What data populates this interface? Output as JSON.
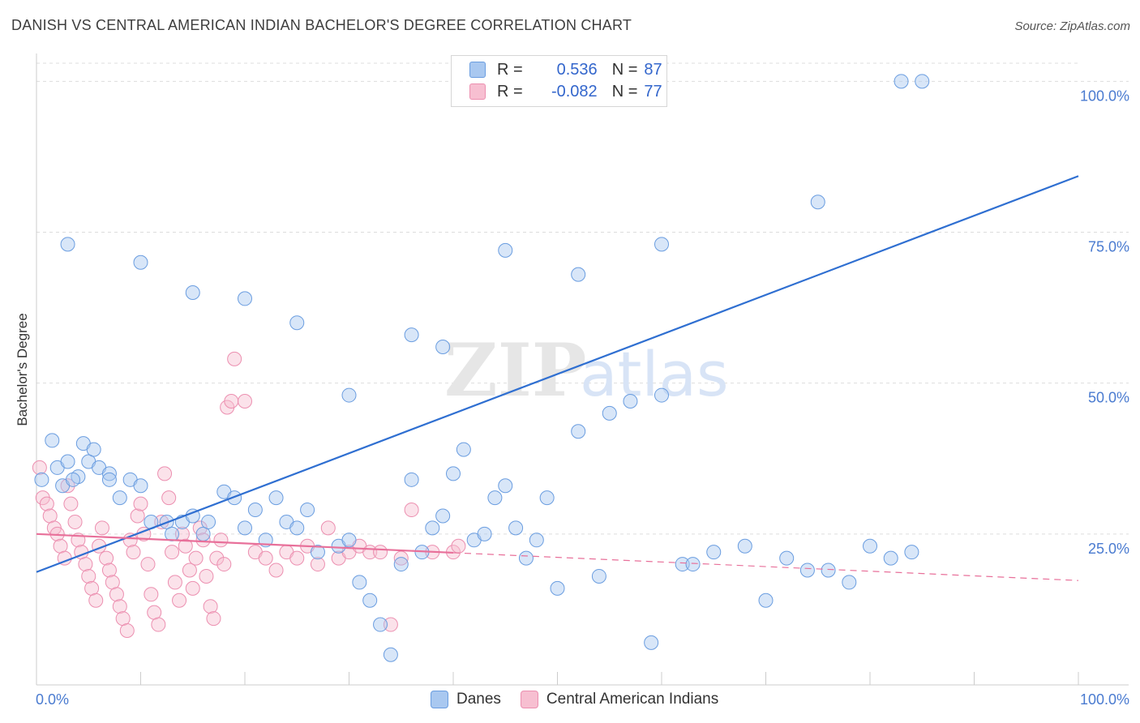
{
  "header": {
    "title": "DANISH VS CENTRAL AMERICAN INDIAN BACHELOR'S DEGREE CORRELATION CHART",
    "source": "Source: ZipAtlas.com"
  },
  "legend": {
    "r_label": "R =",
    "n_label": "N =",
    "series": [
      {
        "r": "0.536",
        "n": "87"
      },
      {
        "r": "-0.082",
        "n": "77"
      }
    ]
  },
  "bottom_legend": [
    "Danes",
    "Central American Indians"
  ],
  "watermark": {
    "zip": "ZIP",
    "atlas": "atlas"
  },
  "chart_data": {
    "type": "scatter",
    "title": "DANISH VS CENTRAL AMERICAN INDIAN BACHELOR'S DEGREE CORRELATION CHART",
    "xlabel": "",
    "ylabel": "Bachelor's Degree",
    "xlim": [
      0,
      100
    ],
    "ylim": [
      0,
      103
    ],
    "x_tick_labels": [
      "0.0%",
      "100.0%"
    ],
    "y_ticks": [
      25,
      50,
      75,
      100
    ],
    "y_tick_labels": [
      "25.0%",
      "50.0%",
      "75.0%",
      "100.0%"
    ],
    "grid": true,
    "colors": {
      "danes_fill": "#a9c8f0",
      "danes_stroke": "#6a9de0",
      "danes_line": "#2f6fd1",
      "cai_fill": "#f7bfd1",
      "cai_stroke": "#ec8fb0",
      "cai_line": "#e8709a",
      "grid": "#dddddd",
      "tick_text": "#4a7bd0"
    },
    "series": [
      {
        "name": "Danes",
        "r": 0.536,
        "n": 87,
        "trend": {
          "x0": 0,
          "y0": 18.7,
          "x1": 100,
          "y1": 84.3
        },
        "points": [
          [
            0.5,
            34
          ],
          [
            2,
            36
          ],
          [
            3,
            37
          ],
          [
            1.5,
            40.5
          ],
          [
            4,
            34.5
          ],
          [
            2.5,
            33
          ],
          [
            3.5,
            34
          ],
          [
            5,
            37
          ],
          [
            6,
            36
          ],
          [
            7,
            35
          ],
          [
            4.5,
            40
          ],
          [
            5.5,
            39
          ],
          [
            7,
            34
          ],
          [
            8,
            31
          ],
          [
            9,
            34
          ],
          [
            10,
            33
          ],
          [
            11,
            27
          ],
          [
            12.5,
            27
          ],
          [
            13,
            25
          ],
          [
            14,
            27
          ],
          [
            15,
            28
          ],
          [
            16,
            25
          ],
          [
            16.5,
            27
          ],
          [
            18,
            32
          ],
          [
            19,
            31
          ],
          [
            20,
            26
          ],
          [
            21,
            29
          ],
          [
            23,
            31
          ],
          [
            24,
            27
          ],
          [
            25,
            26
          ],
          [
            22,
            24
          ],
          [
            26,
            29
          ],
          [
            27,
            22
          ],
          [
            29,
            23
          ],
          [
            30,
            24
          ],
          [
            31,
            17
          ],
          [
            32,
            14
          ],
          [
            33,
            10
          ],
          [
            34,
            5
          ],
          [
            35,
            20
          ],
          [
            36,
            34
          ],
          [
            37,
            22
          ],
          [
            38,
            26
          ],
          [
            39,
            28
          ],
          [
            40,
            35
          ],
          [
            41,
            39
          ],
          [
            42,
            24
          ],
          [
            43,
            25
          ],
          [
            44,
            31
          ],
          [
            45,
            33
          ],
          [
            46,
            26
          ],
          [
            47,
            21
          ],
          [
            48,
            24
          ],
          [
            49,
            31
          ],
          [
            50,
            16
          ],
          [
            52,
            42
          ],
          [
            54,
            18
          ],
          [
            55,
            45
          ],
          [
            57,
            47
          ],
          [
            59,
            7
          ],
          [
            60,
            48
          ],
          [
            62,
            20
          ],
          [
            63,
            20
          ],
          [
            65,
            22
          ],
          [
            68,
            23
          ],
          [
            70,
            14
          ],
          [
            72,
            21
          ],
          [
            74,
            19
          ],
          [
            76,
            19
          ],
          [
            78,
            17
          ],
          [
            80,
            23
          ],
          [
            82,
            21
          ],
          [
            84,
            22
          ],
          [
            3,
            73
          ],
          [
            10,
            70
          ],
          [
            15,
            65
          ],
          [
            20,
            64
          ],
          [
            25,
            60
          ],
          [
            30,
            48
          ],
          [
            36,
            58
          ],
          [
            39,
            56
          ],
          [
            45,
            72
          ],
          [
            52,
            68
          ],
          [
            60,
            73
          ],
          [
            75,
            80
          ],
          [
            83,
            100
          ],
          [
            85,
            100
          ]
        ]
      },
      {
        "name": "Central American Indians",
        "r": -0.082,
        "n": 77,
        "trend": {
          "x0": 0,
          "y0": 25.0,
          "x1": 40,
          "y1": 21.9,
          "dashed_x1": 100,
          "dashed_y1": 17.3
        },
        "points": [
          [
            0.3,
            36
          ],
          [
            0.6,
            31
          ],
          [
            1,
            30
          ],
          [
            1.3,
            28
          ],
          [
            1.7,
            26
          ],
          [
            2,
            25
          ],
          [
            2.3,
            23
          ],
          [
            2.7,
            21
          ],
          [
            3,
            33
          ],
          [
            3.3,
            30
          ],
          [
            3.7,
            27
          ],
          [
            4,
            24
          ],
          [
            4.3,
            22
          ],
          [
            4.7,
            20
          ],
          [
            5,
            18
          ],
          [
            5.3,
            16
          ],
          [
            5.7,
            14
          ],
          [
            6,
            23
          ],
          [
            6.3,
            26
          ],
          [
            6.7,
            21
          ],
          [
            7,
            19
          ],
          [
            7.3,
            17
          ],
          [
            7.7,
            15
          ],
          [
            8,
            13
          ],
          [
            8.3,
            11
          ],
          [
            8.7,
            9
          ],
          [
            9,
            24
          ],
          [
            9.3,
            22
          ],
          [
            9.7,
            28
          ],
          [
            10,
            30
          ],
          [
            10.3,
            25
          ],
          [
            10.7,
            20
          ],
          [
            11,
            15
          ],
          [
            11.3,
            12
          ],
          [
            11.7,
            10
          ],
          [
            12,
            27
          ],
          [
            12.3,
            35
          ],
          [
            12.7,
            31
          ],
          [
            13,
            22
          ],
          [
            13.3,
            17
          ],
          [
            13.7,
            14
          ],
          [
            14,
            25
          ],
          [
            14.3,
            23
          ],
          [
            14.7,
            19
          ],
          [
            15,
            16
          ],
          [
            15.3,
            21
          ],
          [
            15.7,
            26
          ],
          [
            16,
            24
          ],
          [
            16.3,
            18
          ],
          [
            16.7,
            13
          ],
          [
            17,
            11
          ],
          [
            17.3,
            21
          ],
          [
            17.7,
            24
          ],
          [
            18,
            20
          ],
          [
            18.3,
            46
          ],
          [
            18.7,
            47
          ],
          [
            19,
            54
          ],
          [
            20,
            47
          ],
          [
            21,
            22
          ],
          [
            22,
            21
          ],
          [
            23,
            19
          ],
          [
            24,
            22
          ],
          [
            25,
            21
          ],
          [
            26,
            23
          ],
          [
            27,
            20
          ],
          [
            28,
            26
          ],
          [
            29,
            21
          ],
          [
            30,
            22
          ],
          [
            31,
            23
          ],
          [
            32,
            22
          ],
          [
            33,
            22
          ],
          [
            34,
            10
          ],
          [
            35,
            21
          ],
          [
            36,
            29
          ],
          [
            38,
            22
          ],
          [
            40,
            22
          ],
          [
            40.5,
            23
          ]
        ]
      }
    ]
  }
}
